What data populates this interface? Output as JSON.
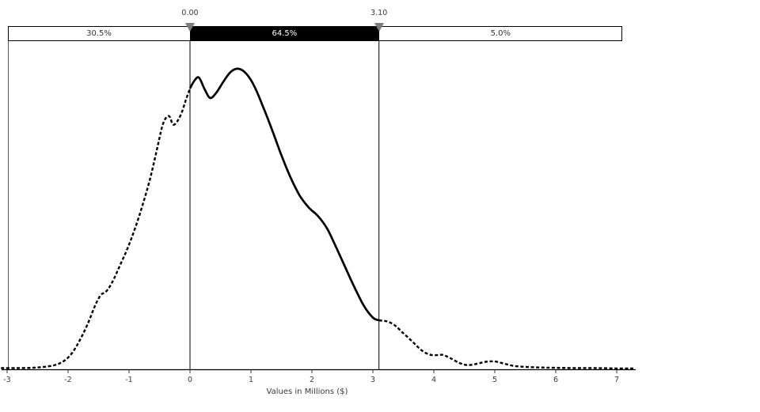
{
  "band_bar": {
    "regions": [
      {
        "name": "left-tail",
        "label": "30.5%"
      },
      {
        "name": "selected-range",
        "label": "64.5%"
      },
      {
        "name": "right-tail",
        "label": "5.0%"
      }
    ]
  },
  "delimiters": [
    {
      "value": 0.0,
      "label": "0.00"
    },
    {
      "value": 3.1,
      "label": "3.10"
    }
  ],
  "chart_data": {
    "type": "area",
    "title": "",
    "xlabel": "Values in Millions ($)",
    "ylabel": "",
    "x_ticks": [
      -3,
      -2,
      -1,
      0,
      1,
      2,
      3,
      4,
      5,
      6,
      7
    ],
    "xlim": [
      -3.1,
      7.28
    ],
    "ylim_normalized": [
      0,
      1
    ],
    "grid": false,
    "legend": false,
    "regions": [
      {
        "range": [
          -3.1,
          0.0
        ],
        "probability_pct": 30.5,
        "line_style": "dashed"
      },
      {
        "range": [
          0.0,
          3.1
        ],
        "probability_pct": 64.5,
        "line_style": "solid"
      },
      {
        "range": [
          3.1,
          7.28
        ],
        "probability_pct": 5.0,
        "line_style": "dashed"
      }
    ],
    "curve_points": [
      [
        -3.1,
        0.004
      ],
      [
        -2.85,
        0.004
      ],
      [
        -2.6,
        0.005
      ],
      [
        -2.4,
        0.008
      ],
      [
        -2.22,
        0.014
      ],
      [
        -2.08,
        0.026
      ],
      [
        -1.95,
        0.05
      ],
      [
        -1.82,
        0.092
      ],
      [
        -1.68,
        0.15
      ],
      [
        -1.55,
        0.215
      ],
      [
        -1.46,
        0.248
      ],
      [
        -1.38,
        0.258
      ],
      [
        -1.28,
        0.288
      ],
      [
        -1.15,
        0.345
      ],
      [
        -1.02,
        0.405
      ],
      [
        -0.9,
        0.47
      ],
      [
        -0.78,
        0.545
      ],
      [
        -0.66,
        0.63
      ],
      [
        -0.55,
        0.725
      ],
      [
        -0.46,
        0.805
      ],
      [
        -0.4,
        0.835
      ],
      [
        -0.34,
        0.842
      ],
      [
        -0.28,
        0.815
      ],
      [
        -0.22,
        0.822
      ],
      [
        -0.14,
        0.852
      ],
      [
        -0.07,
        0.895
      ],
      [
        0.0,
        0.935
      ],
      [
        0.08,
        0.963
      ],
      [
        0.15,
        0.97
      ],
      [
        0.24,
        0.932
      ],
      [
        0.33,
        0.903
      ],
      [
        0.43,
        0.92
      ],
      [
        0.55,
        0.958
      ],
      [
        0.67,
        0.99
      ],
      [
        0.8,
        1.0
      ],
      [
        0.93,
        0.982
      ],
      [
        1.06,
        0.94
      ],
      [
        1.2,
        0.873
      ],
      [
        1.35,
        0.795
      ],
      [
        1.5,
        0.712
      ],
      [
        1.65,
        0.638
      ],
      [
        1.8,
        0.578
      ],
      [
        1.95,
        0.538
      ],
      [
        2.1,
        0.51
      ],
      [
        2.25,
        0.468
      ],
      [
        2.4,
        0.405
      ],
      [
        2.55,
        0.338
      ],
      [
        2.7,
        0.272
      ],
      [
        2.85,
        0.212
      ],
      [
        3.0,
        0.172
      ],
      [
        3.1,
        0.163
      ],
      [
        3.22,
        0.16
      ],
      [
        3.35,
        0.148
      ],
      [
        3.5,
        0.12
      ],
      [
        3.65,
        0.092
      ],
      [
        3.8,
        0.063
      ],
      [
        3.93,
        0.049
      ],
      [
        4.05,
        0.047
      ],
      [
        4.15,
        0.048
      ],
      [
        4.28,
        0.036
      ],
      [
        4.42,
        0.021
      ],
      [
        4.55,
        0.014
      ],
      [
        4.7,
        0.018
      ],
      [
        4.85,
        0.025
      ],
      [
        5.0,
        0.026
      ],
      [
        5.15,
        0.019
      ],
      [
        5.32,
        0.011
      ],
      [
        5.52,
        0.008
      ],
      [
        5.75,
        0.006
      ],
      [
        6.0,
        0.005
      ],
      [
        6.3,
        0.004
      ],
      [
        6.65,
        0.004
      ],
      [
        7.0,
        0.003
      ],
      [
        7.28,
        0.003
      ]
    ]
  }
}
